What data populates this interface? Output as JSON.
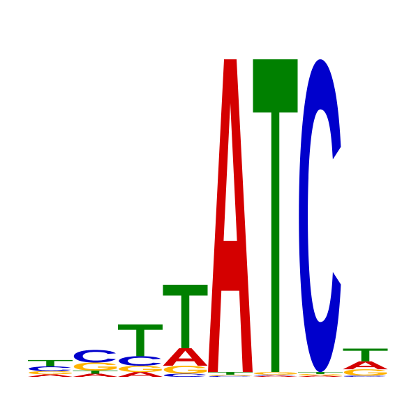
{
  "diagram": {
    "type": "sequence-logo",
    "colors": {
      "A": "#d40000",
      "C": "#0000cc",
      "G": "#ffb300",
      "T": "#008000"
    },
    "positions": [
      {
        "index": 1,
        "letters": [
          {
            "base": "A",
            "height": 0.008
          },
          {
            "base": "G",
            "height": 0.01
          },
          {
            "base": "C",
            "height": 0.015
          },
          {
            "base": "T",
            "height": 0.02
          }
        ]
      },
      {
        "index": 2,
        "letters": [
          {
            "base": "A",
            "height": 0.01
          },
          {
            "base": "T",
            "height": 0.01
          },
          {
            "base": "G",
            "height": 0.025
          },
          {
            "base": "C",
            "height": 0.04
          }
        ]
      },
      {
        "index": 3,
        "letters": [
          {
            "base": "A",
            "height": 0.015
          },
          {
            "base": "G",
            "height": 0.02
          },
          {
            "base": "C",
            "height": 0.03
          },
          {
            "base": "T",
            "height": 0.1
          }
        ]
      },
      {
        "index": 4,
        "letters": [
          {
            "base": "C",
            "height": 0.01
          },
          {
            "base": "G",
            "height": 0.025
          },
          {
            "base": "A",
            "height": 0.055
          },
          {
            "base": "T",
            "height": 0.2
          }
        ]
      },
      {
        "index": 5,
        "letters": [
          {
            "base": "C",
            "height": 0.003
          },
          {
            "base": "G",
            "height": 0.004
          },
          {
            "base": "T",
            "height": 0.008
          },
          {
            "base": "A",
            "height": 0.985
          }
        ]
      },
      {
        "index": 6,
        "letters": [
          {
            "base": "A",
            "height": 0.004
          },
          {
            "base": "C",
            "height": 0.003
          },
          {
            "base": "G",
            "height": 0.008
          },
          {
            "base": "T",
            "height": 0.985
          }
        ]
      },
      {
        "index": 7,
        "letters": [
          {
            "base": "A",
            "height": 0.004
          },
          {
            "base": "G",
            "height": 0.005
          },
          {
            "base": "T",
            "height": 0.006
          },
          {
            "base": "C",
            "height": 0.985
          }
        ]
      },
      {
        "index": 8,
        "letters": [
          {
            "base": "C",
            "height": 0.004
          },
          {
            "base": "G",
            "height": 0.02
          },
          {
            "base": "A",
            "height": 0.025
          },
          {
            "base": "T",
            "height": 0.04
          }
        ]
      }
    ]
  }
}
